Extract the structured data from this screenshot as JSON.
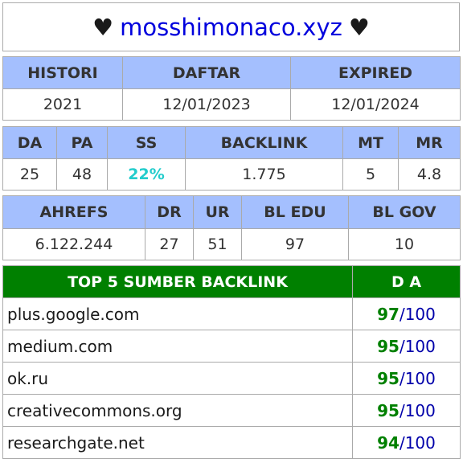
{
  "title": {
    "prefix": "♥",
    "domain": "mosshimonaco.xyz",
    "suffix": "♥"
  },
  "table1": {
    "headers": [
      "HISTORI",
      "DAFTAR",
      "EXPIRED"
    ],
    "values": [
      "2021",
      "12/01/2023",
      "12/01/2024"
    ]
  },
  "table2": {
    "headers": [
      "DA",
      "PA",
      "SS",
      "BACKLINK",
      "MT",
      "MR"
    ],
    "values": [
      "25",
      "48",
      "22%",
      "1.775",
      "5",
      "4.8"
    ]
  },
  "table3": {
    "headers": [
      "AHREFS",
      "DR",
      "UR",
      "BL EDU",
      "BL GOV"
    ],
    "values": [
      "6.122.244",
      "27",
      "51",
      "97",
      "10"
    ]
  },
  "backlinks": {
    "header_source": "TOP 5 SUMBER BACKLINK",
    "header_da": "D A",
    "rows": [
      {
        "source": "plus.google.com",
        "da": "97",
        "max": "/100"
      },
      {
        "source": "medium.com",
        "da": "95",
        "max": "/100"
      },
      {
        "source": "ok.ru",
        "da": "95",
        "max": "/100"
      },
      {
        "source": "creativecommons.org",
        "da": "95",
        "max": "/100"
      },
      {
        "source": "researchgate.net",
        "da": "94",
        "max": "/100"
      }
    ]
  },
  "colors": {
    "header_bg": "#a4bffe",
    "top5_header_bg": "#008000",
    "domain": "#0000dd",
    "ss": "#22cccc"
  }
}
